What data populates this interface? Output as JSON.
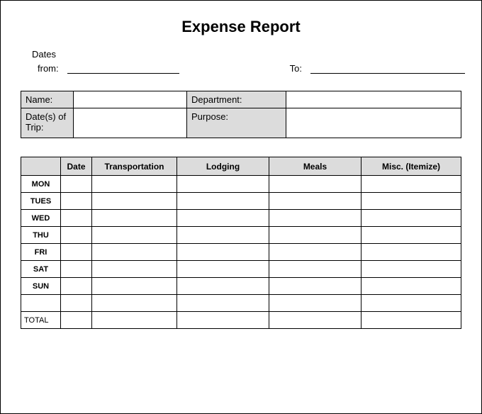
{
  "title": "Expense Report",
  "dates_section": {
    "heading": "Dates",
    "from_label": "from:",
    "to_label": "To:",
    "from_value": "",
    "to_value": ""
  },
  "info": {
    "name_label": "Name:",
    "name_value": "",
    "department_label": "Department:",
    "department_value": "",
    "dates_of_trip_label": "Date(s) of Trip:",
    "dates_of_trip_value": "",
    "purpose_label": "Purpose:",
    "purpose_value": ""
  },
  "expense_table": {
    "columns": [
      "",
      "Date",
      "Transportation",
      "Lodging",
      "Meals",
      "Misc. (Itemize)"
    ],
    "days": [
      "MON",
      "TUES",
      "WED",
      "THU",
      "FRI",
      "SAT",
      "SUN"
    ],
    "blank_row_label": "",
    "total_label": "TOTAL"
  },
  "style": {
    "shaded_bg": "#dcdcdc",
    "border_color": "#000000",
    "page_bg": "#ffffff"
  }
}
